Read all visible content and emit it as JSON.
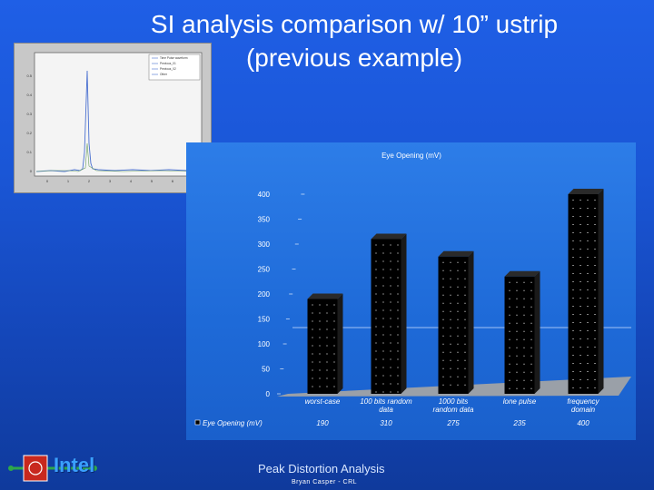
{
  "slide": {
    "title_line1": "SI analysis comparison w/ 10” ustrip",
    "title_line2": "(previous example)",
    "footer_title": "Peak Distortion Analysis",
    "footer_author": "Bryan Casper - CRL",
    "logo_text": "Intel"
  },
  "colors": {
    "background": "#1a56d6",
    "bar_fill": "#000000",
    "bar_dots": "#ffffff",
    "chart_floor": "#9aa0a8",
    "inset_peak": "#4a70d0"
  },
  "inset_plot": {
    "legend": [
      "Time Pulse waveform",
      "Previous_01",
      "Previous_02",
      "Other"
    ],
    "y_ticks": [
      "0.5",
      "0.4",
      "0.3",
      "0.2",
      "0.1",
      "0"
    ],
    "x_ticks": [
      "0",
      "1",
      "2",
      "3",
      "4",
      "5",
      "6",
      "7"
    ]
  },
  "chart_data": {
    "type": "bar",
    "title": "Eye Opening (mV)",
    "categories": [
      "worst-case",
      "100 bits random data",
      "1000 bits random data",
      "lone pulse",
      "frequency domain"
    ],
    "category_lines": [
      [
        "worst-case"
      ],
      [
        "100 bits random",
        "data"
      ],
      [
        "1000 bits",
        "random data"
      ],
      [
        "lone pulse"
      ],
      [
        "frequency",
        "domain"
      ]
    ],
    "y_ticks": [
      "400",
      "350",
      "300",
      "250",
      "200",
      "150",
      "100",
      "50",
      "0"
    ],
    "ylim": [
      0,
      400
    ],
    "series": [
      {
        "name": "Eye Opening (mV)",
        "values": [
          190,
          310,
          275,
          235,
          400
        ]
      }
    ],
    "value_labels": [
      "190",
      "310",
      "275",
      "235",
      "400"
    ],
    "legend": "bottom-left",
    "grid": false
  }
}
